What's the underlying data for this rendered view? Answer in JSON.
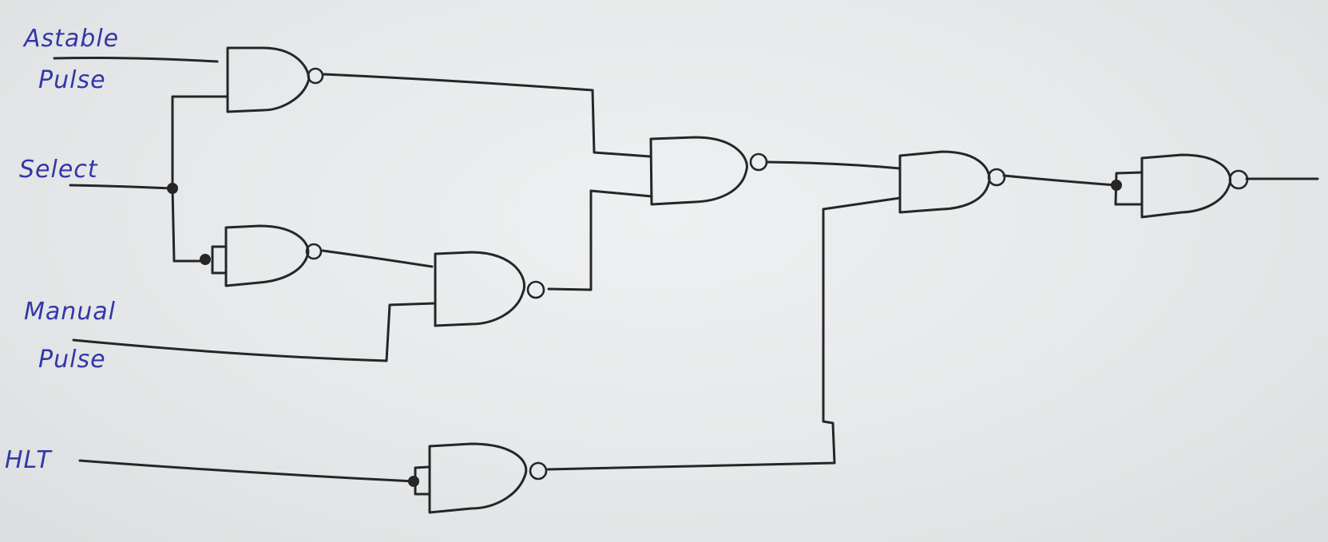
{
  "labels": {
    "astable_line1": "Astable",
    "astable_line2": "Pulse",
    "select": "Select",
    "manual_line1": "Manual",
    "manual_line2": "Pulse",
    "hlt": "HLT"
  },
  "gates": [
    {
      "id": "g1",
      "type": "NAND",
      "inputs": [
        "Astable Pulse",
        "Select"
      ]
    },
    {
      "id": "g2",
      "type": "NAND",
      "inputs": [
        "Select",
        "Select"
      ],
      "role": "inverter"
    },
    {
      "id": "g3",
      "type": "NAND",
      "inputs": [
        "g2",
        "Manual Pulse"
      ]
    },
    {
      "id": "g4",
      "type": "NAND",
      "inputs": [
        "g1",
        "g3"
      ]
    },
    {
      "id": "g5",
      "type": "NAND",
      "inputs": [
        "HLT",
        "HLT"
      ],
      "role": "inverter"
    },
    {
      "id": "g6",
      "type": "NAND",
      "inputs": [
        "g4",
        "g5"
      ]
    },
    {
      "id": "g7",
      "type": "NAND",
      "inputs": [
        "g6",
        "g6"
      ],
      "role": "inverter"
    }
  ],
  "colors": {
    "ink": "#262626",
    "label_ink": "#3237a8",
    "paper": "#e6e8e9"
  }
}
